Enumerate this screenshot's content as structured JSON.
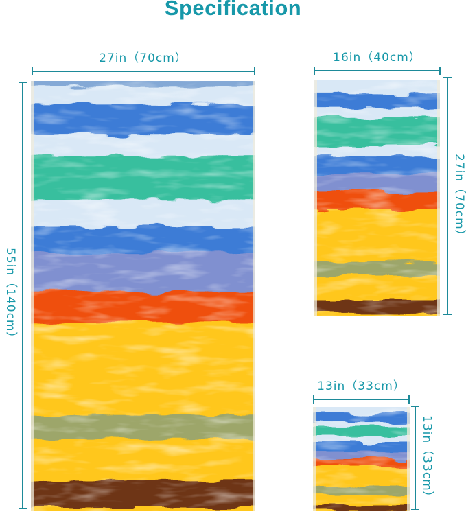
{
  "title": "Specification",
  "colors": {
    "accent": "#1798A9",
    "dim_line": "#1D8A99",
    "towel_edge": "#F0ECDC",
    "stripes": {
      "fringe": "#84A9D6",
      "light": "#D9E8F6",
      "blue": "#3C7CD6",
      "teal": "#38BF9E",
      "periwinkle": "#8090D0",
      "orange": "#EF5010",
      "yellow": "#FFC71C",
      "olive": "#9DA66B",
      "brown": "#6E3413"
    }
  },
  "towels": [
    {
      "name": "bath-towel",
      "width_label": "27in（70cm）",
      "height_label": "55in（140cm）",
      "height_label_side": "left",
      "stripes": [
        {
          "color": "fringe",
          "from": 0,
          "to": 0.013
        },
        {
          "color": "light",
          "from": 0.013,
          "to": 0.054
        },
        {
          "color": "blue",
          "from": 0.054,
          "to": 0.123
        },
        {
          "color": "light",
          "from": 0.123,
          "to": 0.175
        },
        {
          "color": "teal",
          "from": 0.175,
          "to": 0.277
        },
        {
          "color": "light",
          "from": 0.277,
          "to": 0.338
        },
        {
          "color": "blue",
          "from": 0.338,
          "to": 0.399
        },
        {
          "color": "periwinkle",
          "from": 0.399,
          "to": 0.49
        },
        {
          "color": "orange",
          "from": 0.49,
          "to": 0.561
        },
        {
          "color": "yellow",
          "from": 0.561,
          "to": 0.777
        },
        {
          "color": "olive",
          "from": 0.777,
          "to": 0.832
        },
        {
          "color": "yellow",
          "from": 0.832,
          "to": 0.928
        },
        {
          "color": "brown",
          "from": 0.928,
          "to": 0.992
        },
        {
          "color": "yellow",
          "from": 0.992,
          "to": 1
        }
      ]
    },
    {
      "name": "hand-towel",
      "width_label": "16in（40cm）",
      "height_label": "27in（70cm）",
      "height_label_side": "right",
      "stripes": [
        {
          "color": "light",
          "from": 0,
          "to": 0.058
        },
        {
          "color": "blue",
          "from": 0.058,
          "to": 0.117
        },
        {
          "color": "light",
          "from": 0.117,
          "to": 0.16
        },
        {
          "color": "teal",
          "from": 0.16,
          "to": 0.277
        },
        {
          "color": "light",
          "from": 0.277,
          "to": 0.324
        },
        {
          "color": "blue",
          "from": 0.324,
          "to": 0.397
        },
        {
          "color": "periwinkle",
          "from": 0.397,
          "to": 0.475
        },
        {
          "color": "orange",
          "from": 0.475,
          "to": 0.548
        },
        {
          "color": "yellow",
          "from": 0.548,
          "to": 0.773
        },
        {
          "color": "olive",
          "from": 0.773,
          "to": 0.831
        },
        {
          "color": "yellow",
          "from": 0.831,
          "to": 0.933
        },
        {
          "color": "brown",
          "from": 0.933,
          "to": 0.991
        },
        {
          "color": "yellow",
          "from": 0.991,
          "to": 1
        }
      ]
    },
    {
      "name": "washcloth",
      "width_label": "13in（33cm）",
      "height_label": "13in（33cm）",
      "height_label_side": "right",
      "stripes": [
        {
          "color": "light",
          "from": 0,
          "to": 0.06
        },
        {
          "color": "blue",
          "from": 0.06,
          "to": 0.145
        },
        {
          "color": "light",
          "from": 0.145,
          "to": 0.184
        },
        {
          "color": "teal",
          "from": 0.184,
          "to": 0.283
        },
        {
          "color": "light",
          "from": 0.283,
          "to": 0.342
        },
        {
          "color": "blue",
          "from": 0.342,
          "to": 0.428
        },
        {
          "color": "periwinkle",
          "from": 0.428,
          "to": 0.494
        },
        {
          "color": "orange",
          "from": 0.494,
          "to": 0.566
        },
        {
          "color": "yellow",
          "from": 0.566,
          "to": 0.77
        },
        {
          "color": "olive",
          "from": 0.77,
          "to": 0.836
        },
        {
          "color": "yellow",
          "from": 0.836,
          "to": 0.941
        },
        {
          "color": "brown",
          "from": 0.941,
          "to": 0.993
        },
        {
          "color": "yellow",
          "from": 0.993,
          "to": 1
        }
      ]
    }
  ]
}
